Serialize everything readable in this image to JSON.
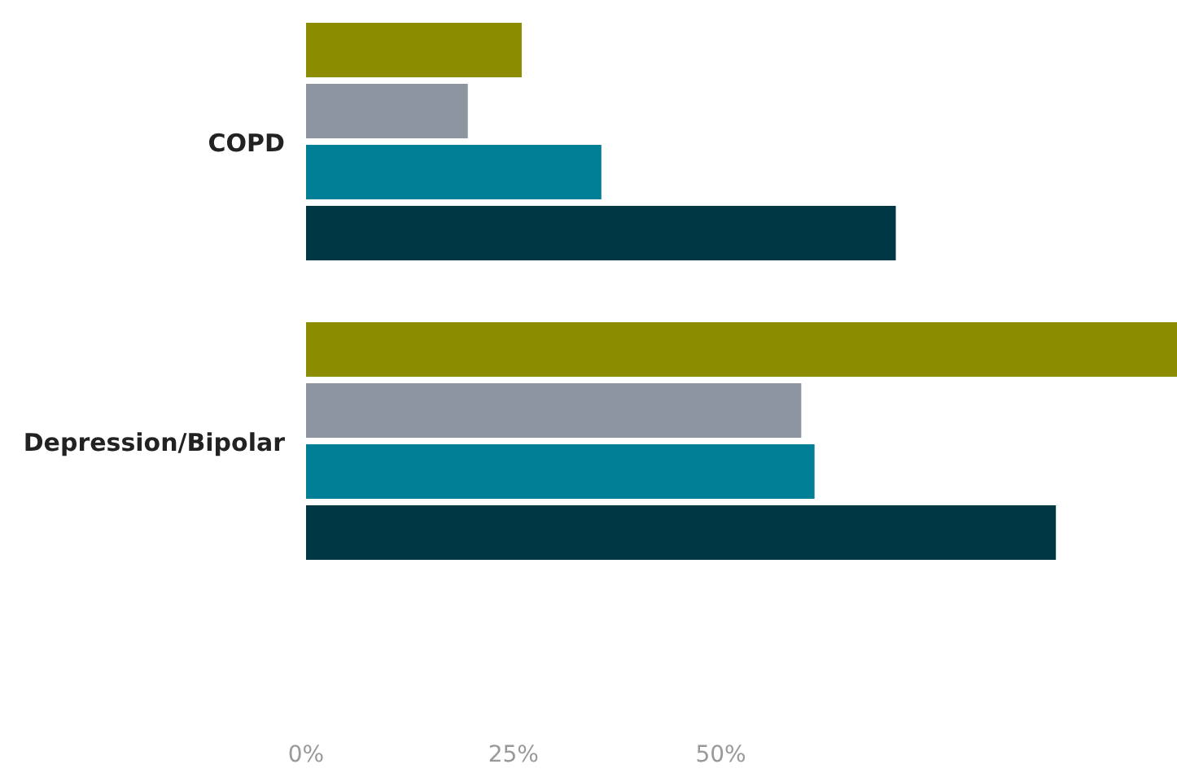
{
  "chart_data": {
    "type": "bar",
    "orientation": "horizontal",
    "categories": [
      "COPD",
      "Depression/Bipolar"
    ],
    "series": [
      {
        "color": "#8c8c00",
        "values": [
          26,
          105
        ]
      },
      {
        "color": "#8c95a0",
        "values": [
          19.5,
          59.7
        ]
      },
      {
        "color": "#007f96",
        "values": [
          35.6,
          61.3
        ]
      },
      {
        "color": "#003745",
        "values": [
          71.1,
          90.4
        ]
      }
    ],
    "xlim": [
      0,
      105
    ],
    "xticks": [
      {
        "value": 0,
        "label": "0%"
      },
      {
        "value": 25,
        "label": "25%"
      },
      {
        "value": 50,
        "label": "50%"
      }
    ]
  }
}
